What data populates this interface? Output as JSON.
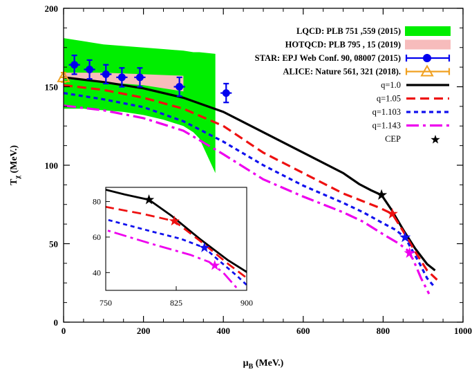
{
  "chart_data": {
    "type": "line",
    "xlabel": "μB (MeV.)",
    "xlabel_parts": {
      "main": "μ",
      "sub": "B",
      "unit": " (MeV.)"
    },
    "ylabel": "Tχ (MeV.)",
    "ylabel_parts": {
      "main": "T",
      "sub": "χ",
      "unit": " (MeV.)"
    },
    "xlim": [
      0,
      1000
    ],
    "ylim": [
      0,
      200
    ],
    "xticks": [
      0,
      200,
      400,
      600,
      800,
      1000
    ],
    "yticks": [
      0,
      50,
      100,
      150,
      200
    ],
    "legend_position": "top-right",
    "bands": [
      {
        "name": "LQCD: PLB 751 ,559 (2015)",
        "color": "#00ee00",
        "x": [
          0,
          50,
          100,
          150,
          200,
          250,
          300,
          325,
          340,
          380
        ],
        "upper": [
          181,
          179,
          177,
          176,
          175,
          174,
          173,
          172,
          172,
          171
        ],
        "lower": [
          136,
          136,
          135,
          134,
          132,
          129,
          125,
          121,
          117,
          95
        ]
      },
      {
        "name": "HOTQCD: PLB 795 , 15 (2019)",
        "color": "#f7bcbc",
        "x": [
          0,
          100,
          200,
          300
        ],
        "upper": [
          159,
          159,
          158,
          157
        ],
        "lower": [
          155,
          153,
          151,
          147
        ]
      }
    ],
    "points": [
      {
        "name": "STAR: EPJ Web Conf. 90, 08007 (2015)",
        "color": "#0000ee",
        "x": [
          27,
          65,
          106,
          146,
          191,
          290,
          407
        ],
        "y": [
          164,
          161,
          158,
          156,
          156,
          150,
          146
        ],
        "yerr": [
          6,
          6,
          6,
          6,
          6,
          6,
          6
        ],
        "xerr": [
          14,
          14,
          14,
          14,
          14,
          14,
          14
        ]
      },
      {
        "name": "ALICE: Nature 561, 321 (2018).",
        "color": "#f0a020",
        "x": [
          0
        ],
        "y": [
          156
        ],
        "yerr": [
          3
        ],
        "xerr": [
          10
        ]
      }
    ],
    "series": [
      {
        "name": "q=1.0",
        "color": "#000000",
        "dash": "solid",
        "x": [
          0,
          100,
          200,
          300,
          400,
          500,
          600,
          700,
          740,
          770,
          796,
          820,
          850,
          880,
          910,
          930
        ],
        "y": [
          156,
          153,
          149,
          143,
          134,
          121,
          108,
          95,
          88,
          84,
          81,
          72,
          59,
          47,
          37,
          33
        ]
      },
      {
        "name": "q=1.05",
        "color": "#ee1111",
        "dash": "dashed",
        "x": [
          0,
          100,
          200,
          300,
          400,
          500,
          600,
          700,
          750,
          790,
          823,
          850,
          880,
          910,
          935
        ],
        "y": [
          151,
          148,
          143,
          136,
          125,
          108,
          95,
          82,
          77,
          73,
          69,
          58,
          45,
          33,
          27
        ]
      },
      {
        "name": "q=1.103",
        "color": "#1111ee",
        "dash": "dotted",
        "x": [
          0,
          100,
          200,
          300,
          400,
          500,
          600,
          700,
          750,
          800,
          830,
          855,
          870,
          890,
          910,
          930
        ],
        "y": [
          146,
          142,
          137,
          128,
          115,
          100,
          87,
          76,
          70,
          63,
          59,
          54,
          47,
          38,
          28,
          22
        ]
      },
      {
        "name": "q=1.143",
        "color": "#ee00ee",
        "dash": "dashdot",
        "x": [
          0,
          100,
          200,
          300,
          400,
          500,
          600,
          700,
          750,
          800,
          840,
          860,
          875,
          895,
          915
        ],
        "y": [
          138,
          135,
          130,
          122,
          107,
          91,
          80,
          70,
          64,
          56,
          50,
          46,
          40,
          28,
          18
        ]
      }
    ],
    "cep": {
      "name": "CEP",
      "points": [
        {
          "series": "q=1.0",
          "x": 796,
          "y": 81,
          "color": "#000000"
        },
        {
          "series": "q=1.05",
          "x": 823,
          "y": 69,
          "color": "#ee1111"
        },
        {
          "series": "q=1.103",
          "x": 855,
          "y": 54,
          "color": "#1111ee"
        },
        {
          "series": "q=1.143",
          "x": 866,
          "y": 44,
          "color": "#ee00ee"
        }
      ]
    },
    "inset": {
      "xlim": [
        750,
        900
      ],
      "ylim": [
        30,
        88
      ],
      "xticks": [
        750,
        825,
        900
      ],
      "yticks": [
        40,
        60,
        80
      ]
    }
  }
}
